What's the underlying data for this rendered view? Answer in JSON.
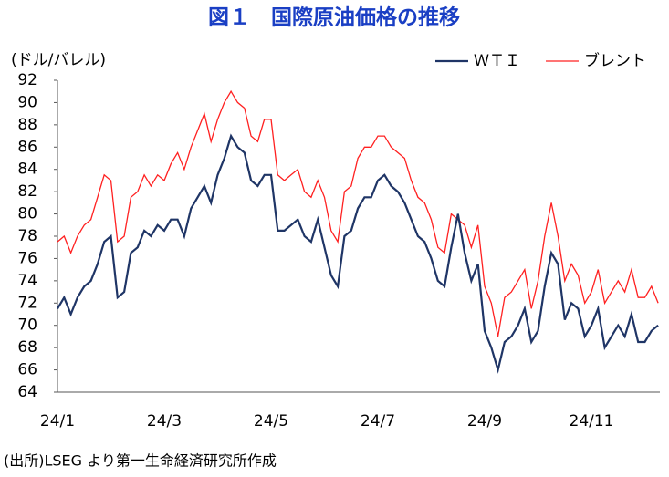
{
  "chart_data": {
    "type": "line",
    "title": "図１　国際原油価格の推移",
    "y_label": "(ドル/バレル)",
    "source": "(出所)LSEG より第一生命経済研究所作成",
    "categories": [
      "24/1",
      null,
      null,
      null,
      null,
      null,
      null,
      null,
      null,
      null,
      null,
      null,
      null,
      null,
      null,
      null,
      "24/3",
      null,
      null,
      null,
      null,
      null,
      null,
      null,
      null,
      null,
      null,
      null,
      null,
      null,
      null,
      null,
      "24/5",
      null,
      null,
      null,
      null,
      null,
      null,
      null,
      null,
      null,
      null,
      null,
      null,
      null,
      null,
      null,
      "24/7",
      null,
      null,
      null,
      null,
      null,
      null,
      null,
      null,
      null,
      null,
      null,
      null,
      null,
      null,
      null,
      "24/9",
      null,
      null,
      null,
      null,
      null,
      null,
      null,
      null,
      null,
      null,
      null,
      null,
      null,
      null,
      null,
      "24/11",
      null,
      null,
      null,
      null,
      null,
      null,
      null,
      null,
      null,
      null
    ],
    "series": [
      {
        "name": "ＷＴＩ",
        "color": "#1f3566",
        "values": [
          71.5,
          72.5,
          71,
          72.5,
          73.5,
          74,
          75.5,
          77.5,
          78,
          72.5,
          73,
          76.5,
          77,
          78.5,
          78,
          79,
          78.5,
          79.5,
          79.5,
          78,
          80.5,
          81.5,
          82.5,
          81,
          83.5,
          85,
          87,
          86,
          85.5,
          83,
          82.5,
          83.5,
          83.5,
          78.5,
          78.5,
          79,
          79.5,
          78,
          77.5,
          79.5,
          77,
          74.5,
          73.5,
          78,
          78.5,
          80.5,
          81.5,
          81.5,
          83,
          83.5,
          82.5,
          82,
          81,
          79.5,
          78,
          77.5,
          76,
          74,
          73.5,
          77,
          80,
          76.5,
          74,
          75.5,
          69.5,
          68,
          66,
          68.5,
          69,
          70,
          71.5,
          68.5,
          69.5,
          73.5,
          76.5,
          75.5,
          70.5,
          72,
          71.5,
          69,
          70,
          71.5,
          68,
          69,
          70,
          69,
          71,
          68.5,
          68.5,
          69.5,
          70
        ]
      },
      {
        "name": "ブレント",
        "color": "#ff2020",
        "values": [
          77.5,
          78,
          76.5,
          78,
          79,
          79.5,
          81.5,
          83.5,
          83,
          77.5,
          78,
          81.5,
          82,
          83.5,
          82.5,
          83.5,
          83,
          84.5,
          85.5,
          84,
          86,
          87.5,
          89,
          86.5,
          88.5,
          90,
          91,
          90,
          89.5,
          87,
          86.5,
          88.5,
          88.5,
          83.5,
          83,
          83.5,
          84,
          82,
          81.5,
          83,
          81.5,
          78.5,
          77.5,
          82,
          82.5,
          85,
          86,
          86,
          87,
          87,
          86,
          85.5,
          85,
          83,
          81.5,
          81,
          79.5,
          77,
          76.5,
          80,
          79.5,
          79,
          77,
          79,
          73.5,
          72,
          69,
          72.5,
          73,
          74,
          75,
          71.5,
          74,
          78,
          81,
          78,
          74,
          75.5,
          74.5,
          72,
          73,
          75,
          72,
          73,
          74,
          73,
          75,
          72.5,
          72.5,
          73.5,
          72
        ]
      }
    ],
    "ylim": [
      64,
      92
    ],
    "yticks": [
      64,
      66,
      68,
      70,
      72,
      74,
      76,
      78,
      80,
      82,
      84,
      86,
      88,
      90,
      92
    ],
    "legend": "top-right"
  }
}
